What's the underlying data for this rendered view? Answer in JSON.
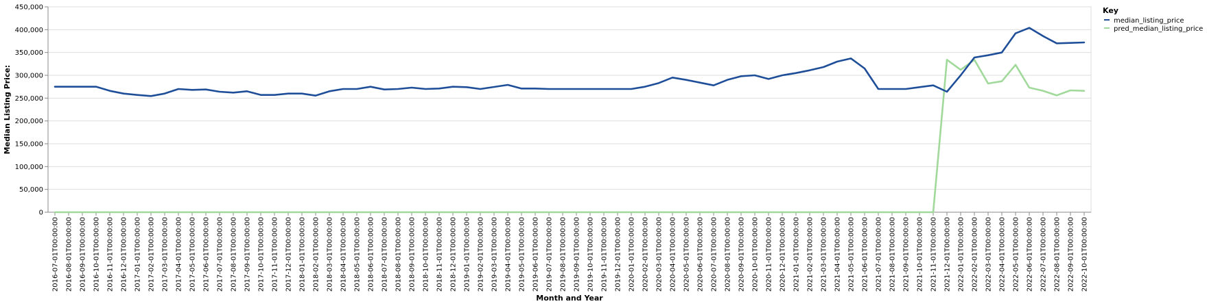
{
  "chart_data": {
    "type": "line",
    "xlabel": "Month and Year",
    "ylabel": "Median Listing Price:",
    "ylim": [
      0,
      450000
    ],
    "yticks": [
      0,
      50000,
      100000,
      150000,
      200000,
      250000,
      300000,
      350000,
      400000,
      450000
    ],
    "ytick_labels": [
      "0",
      "50,000",
      "100,000",
      "150,000",
      "200,000",
      "250,000",
      "300,000",
      "350,000",
      "400,000",
      "450,000"
    ],
    "grid": true,
    "legend": {
      "title": "Key",
      "placement": "top-right"
    },
    "x": [
      "2016-07-01T00:00:00",
      "2016-08-01T00:00:00",
      "2016-09-01T00:00:00",
      "2016-10-01T00:00:00",
      "2016-11-01T00:00:00",
      "2016-12-01T00:00:00",
      "2017-01-01T00:00:00",
      "2017-02-01T00:00:00",
      "2017-03-01T00:00:00",
      "2017-04-01T00:00:00",
      "2017-05-01T00:00:00",
      "2017-06-01T00:00:00",
      "2017-07-01T00:00:00",
      "2017-08-01T00:00:00",
      "2017-09-01T00:00:00",
      "2017-10-01T00:00:00",
      "2017-11-01T00:00:00",
      "2017-12-01T00:00:00",
      "2018-01-01T00:00:00",
      "2018-02-01T00:00:00",
      "2018-03-01T00:00:00",
      "2018-04-01T00:00:00",
      "2018-05-01T00:00:00",
      "2018-06-01T00:00:00",
      "2018-07-01T00:00:00",
      "2018-08-01T00:00:00",
      "2018-09-01T00:00:00",
      "2018-10-01T00:00:00",
      "2018-11-01T00:00:00",
      "2018-12-01T00:00:00",
      "2019-01-01T00:00:00",
      "2019-02-01T00:00:00",
      "2019-03-01T00:00:00",
      "2019-04-01T00:00:00",
      "2019-05-01T00:00:00",
      "2019-06-01T00:00:00",
      "2019-07-01T00:00:00",
      "2019-08-01T00:00:00",
      "2019-09-01T00:00:00",
      "2019-10-01T00:00:00",
      "2019-11-01T00:00:00",
      "2019-12-01T00:00:00",
      "2020-01-01T00:00:00",
      "2020-02-01T00:00:00",
      "2020-03-01T00:00:00",
      "2020-04-01T00:00:00",
      "2020-05-01T00:00:00",
      "2020-06-01T00:00:00",
      "2020-07-01T00:00:00",
      "2020-08-01T00:00:00",
      "2020-09-01T00:00:00",
      "2020-10-01T00:00:00",
      "2020-11-01T00:00:00",
      "2020-12-01T00:00:00",
      "2021-01-01T00:00:00",
      "2021-02-01T00:00:00",
      "2021-03-01T00:00:00",
      "2021-04-01T00:00:00",
      "2021-05-01T00:00:00",
      "2021-06-01T00:00:00",
      "2021-07-01T00:00:00",
      "2021-08-01T00:00:00",
      "2021-09-01T00:00:00",
      "2021-10-01T00:00:00",
      "2021-11-01T00:00:00",
      "2021-12-01T00:00:00",
      "2022-01-01T00:00:00",
      "2022-02-01T00:00:00",
      "2022-03-01T00:00:00",
      "2022-04-01T00:00:00",
      "2022-05-01T00:00:00",
      "2022-06-01T00:00:00",
      "2022-07-01T00:00:00",
      "2022-08-01T00:00:00",
      "2022-09-01T00:00:00",
      "2022-10-01T00:00:00"
    ],
    "series": [
      {
        "name": "median_listing_price",
        "color": "#1f4e99",
        "values": [
          275000,
          275000,
          275000,
          275000,
          266000,
          260000,
          257000,
          254500,
          260000,
          270000,
          268000,
          269000,
          264000,
          262000,
          265000,
          257000,
          257000,
          260000,
          260000,
          255500,
          265000,
          270000,
          270000,
          275000,
          269000,
          270000,
          273000,
          270000,
          271000,
          275000,
          274000,
          270000,
          274500,
          279000,
          271000,
          271000,
          270000,
          270000,
          270000,
          270000,
          270000,
          270000,
          270000,
          275000,
          283000,
          295000,
          290000,
          284000,
          278000,
          290000,
          298000,
          300000,
          292000,
          300000,
          305000,
          311000,
          318000,
          330000,
          337000,
          315000,
          270000,
          270000,
          270000,
          274000,
          278000,
          264000,
          300000,
          339000,
          344000,
          350000,
          392000,
          404000,
          386000,
          370000,
          371000,
          372000
        ]
      },
      {
        "name": "pred_median_listing_price",
        "color": "#a1d99b",
        "values": [
          0,
          0,
          0,
          0,
          0,
          0,
          0,
          0,
          0,
          0,
          0,
          0,
          0,
          0,
          0,
          0,
          0,
          0,
          0,
          0,
          0,
          0,
          0,
          0,
          0,
          0,
          0,
          0,
          0,
          0,
          0,
          0,
          0,
          0,
          0,
          0,
          0,
          0,
          0,
          0,
          0,
          0,
          0,
          0,
          0,
          0,
          0,
          0,
          0,
          0,
          0,
          0,
          0,
          0,
          0,
          0,
          0,
          0,
          0,
          0,
          0,
          0,
          0,
          0,
          0,
          334000,
          312000,
          334000,
          282000,
          287000,
          323000,
          273000,
          266000,
          256000,
          267000,
          266000
        ]
      }
    ]
  }
}
